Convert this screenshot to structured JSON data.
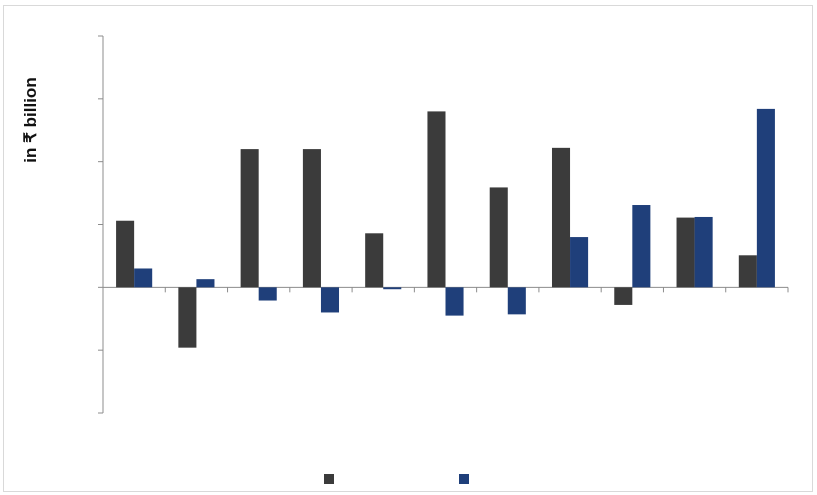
{
  "chart_data": {
    "type": "bar",
    "ylabel": "in ₹ billion",
    "xlabel": "",
    "title": "",
    "ylim": [
      -200,
      400
    ],
    "yticks": [
      -200,
      -100,
      0,
      100,
      200,
      300,
      400
    ],
    "categories": [
      "",
      "",
      "",
      "",
      "",
      "",
      "",
      "",
      "",
      "",
      ""
    ],
    "series": [
      {
        "color": "#3b3b3b",
        "values": [
          106,
          -96,
          220,
          220,
          86,
          280,
          159,
          222,
          -28,
          111,
          51
        ]
      },
      {
        "color": "#1f3f7a",
        "values": [
          30,
          13,
          -21,
          -40,
          -3,
          -45,
          -43,
          80,
          131,
          112,
          284
        ]
      }
    ],
    "grid": false,
    "legend": "bottom-center"
  }
}
